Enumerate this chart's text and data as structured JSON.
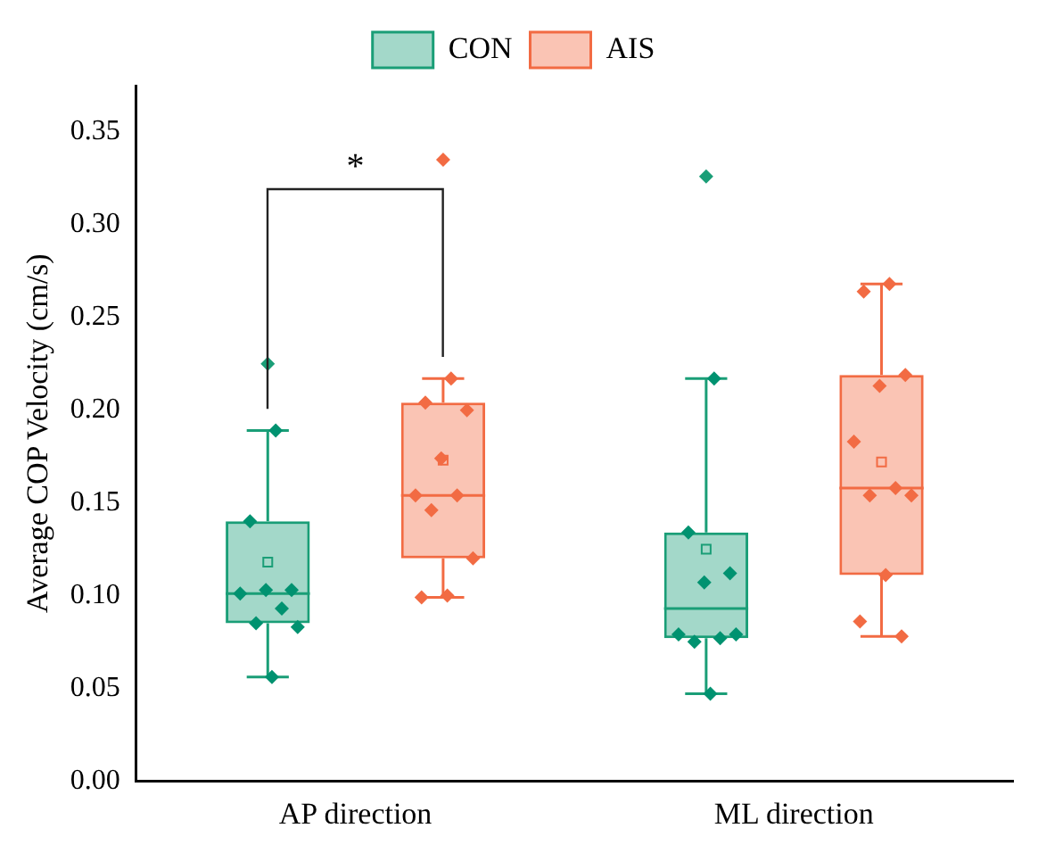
{
  "chart_data": {
    "type": "box",
    "ylabel": "Average COP Velocity (cm/s)",
    "categories": [
      "AP direction",
      "ML direction"
    ],
    "ylim": [
      0,
      0.375
    ],
    "yticks": [
      {
        "value": 0,
        "label": "0.00"
      },
      {
        "value": 0.05,
        "label": "0.05"
      },
      {
        "value": 0.1,
        "label": "0.10"
      },
      {
        "value": 0.15,
        "label": "0.15"
      },
      {
        "value": 0.2,
        "label": "0.20"
      },
      {
        "value": 0.25,
        "label": "0.25"
      },
      {
        "value": 0.3,
        "label": "0.30"
      },
      {
        "value": 0.35,
        "label": "0.35"
      }
    ],
    "legend": "top",
    "grid": false,
    "marker": "diamond",
    "series": [
      {
        "name": "CON",
        "color": "#1a9e77",
        "boxes": [
          {
            "low": 0.056,
            "q1": 0.085,
            "median": 0.101,
            "q3": 0.14,
            "high": 0.189,
            "mean": 0.118,
            "outliers": [
              0.225
            ]
          },
          {
            "low": 0.047,
            "q1": 0.077,
            "median": 0.093,
            "q3": 0.134,
            "high": 0.217,
            "mean": 0.125,
            "outliers": [
              0.326
            ]
          }
        ]
      },
      {
        "name": "AIS",
        "color": "#f26b43",
        "boxes": [
          {
            "low": 0.099,
            "q1": 0.12,
            "median": 0.154,
            "q3": 0.204,
            "high": 0.217,
            "mean": 0.173,
            "outliers": [
              0.335
            ]
          },
          {
            "low": 0.078,
            "q1": 0.111,
            "median": 0.158,
            "q3": 0.219,
            "high": 0.268,
            "mean": 0.172
          }
        ]
      },
      {
        "type": "scatter",
        "color": "#009270",
        "x": [
          "AP direction",
          "AP direction",
          "AP direction",
          "AP direction",
          "AP direction",
          "AP direction",
          "AP direction",
          "AP direction",
          "AP direction",
          "ML direction",
          "ML direction",
          "ML direction",
          "ML direction",
          "ML direction",
          "ML direction",
          "ML direction",
          "ML direction",
          "ML direction"
        ],
        "values": [
          0.189,
          0.14,
          0.103,
          0.103,
          0.101,
          0.093,
          0.085,
          0.083,
          0.056,
          0.217,
          0.134,
          0.112,
          0.107,
          0.079,
          0.077,
          0.075,
          0.079,
          0.047
        ]
      },
      {
        "type": "scatter",
        "color": "#f26b43",
        "x": [
          "AP direction",
          "AP direction",
          "AP direction",
          "AP direction",
          "AP direction",
          "AP direction",
          "AP direction",
          "AP direction",
          "AP direction",
          "AP direction",
          "ML direction",
          "ML direction",
          "ML direction",
          "ML direction",
          "ML direction",
          "ML direction",
          "ML direction",
          "ML direction",
          "ML direction",
          "ML direction",
          "ML direction"
        ],
        "values": [
          0.217,
          0.204,
          0.2,
          0.174,
          0.154,
          0.154,
          0.146,
          0.12,
          0.1,
          0.099,
          0.268,
          0.264,
          0.219,
          0.213,
          0.183,
          0.158,
          0.154,
          0.154,
          0.111,
          0.086,
          0.078
        ]
      }
    ],
    "annotations": [
      "*"
    ]
  }
}
